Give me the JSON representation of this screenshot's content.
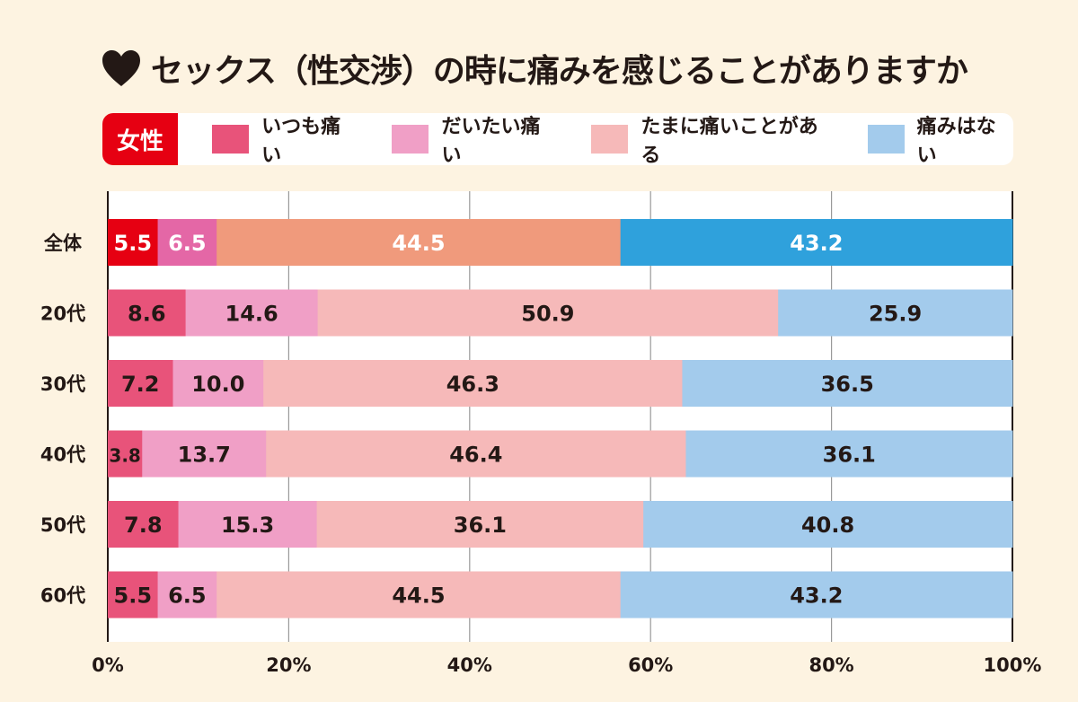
{
  "chart_data": {
    "type": "bar",
    "orientation": "horizontal",
    "stacked": true,
    "title": "セックス（性交渉）の時に痛みを感じることがありますか",
    "badge": "女性",
    "categories": [
      "全体",
      "20代",
      "30代",
      "40代",
      "50代",
      "60代"
    ],
    "series": [
      {
        "name": "いつも痛い",
        "values": [
          5.5,
          8.6,
          7.2,
          3.8,
          7.8,
          5.5
        ],
        "color": "#e8537a",
        "highlight_color": "#e60012"
      },
      {
        "name": "だいたい痛い",
        "values": [
          6.5,
          14.6,
          10.0,
          13.7,
          15.3,
          6.5
        ],
        "color": "#f09fc6",
        "highlight_color": "#e467a6"
      },
      {
        "name": "たまに痛いことがある",
        "values": [
          44.5,
          50.9,
          46.3,
          46.4,
          36.1,
          44.5
        ],
        "color": "#f6b9b9",
        "highlight_color": "#f09a7c"
      },
      {
        "name": "痛みはない",
        "values": [
          43.2,
          25.9,
          36.5,
          36.1,
          40.8,
          43.2
        ],
        "color": "#a3cbec",
        "highlight_color": "#2fa1dc"
      }
    ],
    "xlim": [
      0,
      100
    ],
    "xticks": [
      "0%",
      "20%",
      "40%",
      "60%",
      "80%",
      "100%"
    ],
    "grid": true,
    "legend_placement": "top"
  }
}
